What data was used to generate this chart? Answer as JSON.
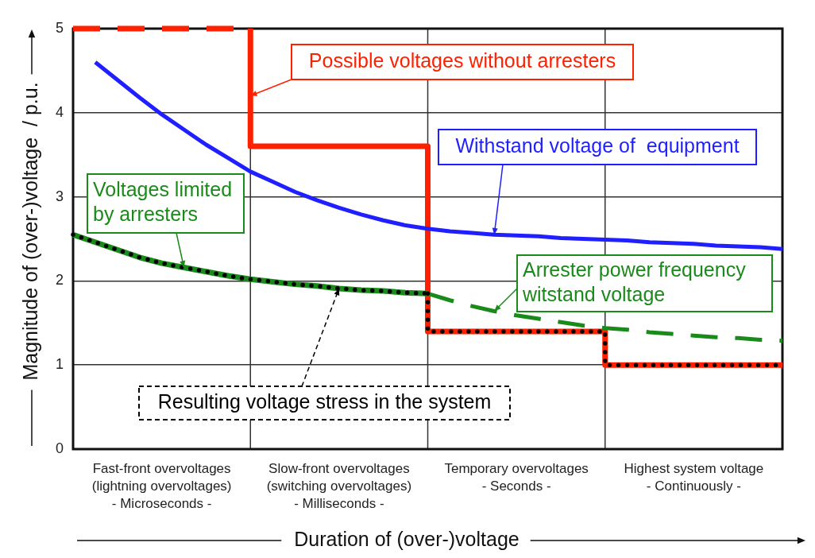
{
  "chart_data": {
    "type": "line",
    "xlabel": "Duration of (over-)voltage",
    "ylabel": "Magnitude of (over-)voltage  / p.u.",
    "categories": [
      null,
      null,
      null,
      null,
      "Fast-front overvoltages\n(lightning overvoltages)\n- Microseconds -",
      null,
      null,
      null,
      null,
      null,
      null,
      null,
      "Slow-front overvoltages\n(switching overvoltages)\n- Milliseconds -",
      null,
      null,
      null,
      null,
      null,
      null,
      null,
      "Temporary overvoltages\n- Seconds -",
      null,
      null,
      null,
      null,
      null,
      null,
      null,
      "Highest system voltage\n- Continuously -",
      null,
      null,
      null,
      null
    ],
    "ylim": [
      0,
      5
    ],
    "yticks": [
      0,
      1,
      2,
      3,
      4,
      5
    ],
    "grid": true,
    "series": [
      {
        "color": "#ff2000",
        "line_style": "dashed",
        "values": [
          5,
          5,
          5,
          5,
          5,
          5,
          5,
          5,
          5,
          null,
          null,
          null,
          null,
          null,
          null,
          null,
          null,
          null,
          null,
          null,
          null,
          null,
          null,
          null,
          null,
          null,
          null,
          null,
          null,
          null,
          null,
          null,
          null
        ]
      },
      {
        "name": "Possible voltages without arresters",
        "type": "step",
        "color": "#ff2000",
        "line_style": "solid",
        "values": [
          null,
          null,
          null,
          null,
          null,
          null,
          null,
          null,
          5,
          3.6,
          3.6,
          3.6,
          3.6,
          3.6,
          3.6,
          3.6,
          3.6,
          1.4,
          1.4,
          1.4,
          1.4,
          1.4,
          1.4,
          1.4,
          1.4,
          1.0,
          1.0,
          1.0,
          1.0,
          1.0,
          1.0,
          1.0,
          1.0
        ]
      },
      {
        "name": "Withstand voltage of  equipment",
        "color": "#1f1fff",
        "line_style": "solid",
        "values": [
          null,
          4.6,
          4.39,
          4.18,
          3.98,
          3.8,
          3.62,
          3.46,
          3.3,
          3.18,
          3.06,
          2.96,
          2.87,
          2.79,
          2.72,
          2.66,
          2.62,
          2.59,
          2.57,
          2.55,
          2.54,
          2.53,
          2.51,
          2.5,
          2.49,
          2.48,
          2.46,
          2.45,
          2.44,
          2.42,
          2.41,
          2.4,
          2.38
        ]
      },
      {
        "name": "Voltages limited by arresters",
        "color": "#1a8a1a",
        "line_style": "solid",
        "values": [
          2.55,
          2.46,
          2.37,
          2.28,
          2.21,
          2.16,
          2.11,
          2.06,
          2.02,
          1.99,
          1.96,
          1.94,
          1.91,
          1.89,
          1.88,
          1.86,
          1.85,
          null,
          null,
          null,
          null,
          null,
          null,
          null,
          null,
          null,
          null,
          null,
          null,
          null,
          null,
          null,
          null
        ]
      },
      {
        "name": "Arrester power frequency witstand voltage",
        "color": "#1a8a1a",
        "line_style": "dashed",
        "values": [
          null,
          null,
          null,
          null,
          null,
          null,
          null,
          null,
          null,
          null,
          null,
          null,
          null,
          null,
          null,
          null,
          1.85,
          1.77,
          1.7,
          1.64,
          1.59,
          1.55,
          1.51,
          1.47,
          1.44,
          1.42,
          1.39,
          1.37,
          1.35,
          1.33,
          1.32,
          1.3,
          1.29
        ]
      },
      {
        "name": "Resulting voltage stress in the system",
        "color": "#000000",
        "line_style": "dotted",
        "values": [
          2.55,
          2.46,
          2.37,
          2.28,
          2.21,
          2.16,
          2.11,
          2.06,
          2.02,
          1.99,
          1.96,
          1.94,
          1.91,
          1.89,
          1.88,
          1.86,
          1.85,
          null,
          null,
          null,
          null,
          null,
          null,
          null,
          null,
          null,
          null,
          null,
          null,
          null,
          null,
          null,
          null
        ]
      },
      {
        "type": "step",
        "color": "#000000",
        "line_style": "dotted",
        "values": [
          null,
          null,
          null,
          null,
          null,
          null,
          null,
          null,
          null,
          null,
          null,
          null,
          null,
          null,
          null,
          null,
          1.85,
          1.4,
          1.4,
          1.4,
          1.4,
          1.4,
          1.4,
          1.4,
          1.4,
          1.0,
          1.0,
          1.0,
          1.0,
          1.0,
          1.0,
          1.0,
          1.0
        ]
      }
    ]
  }
}
